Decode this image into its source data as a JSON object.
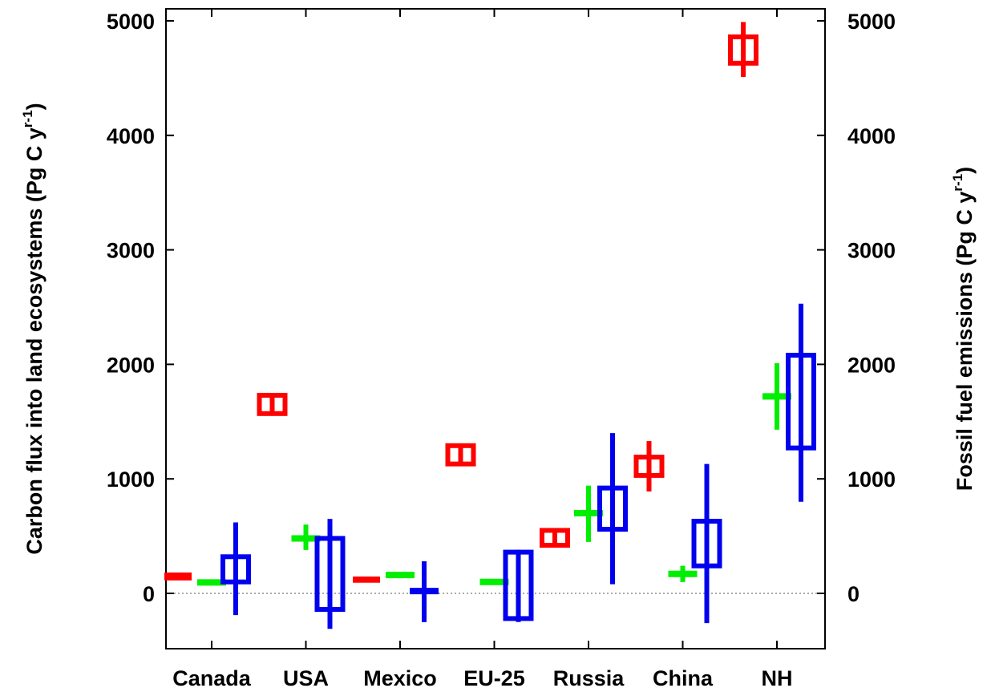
{
  "chart_data": {
    "type": "box",
    "categories": [
      "Canada",
      "USA",
      "Mexico",
      "EU-25",
      "Russia",
      "China",
      "NH"
    ],
    "ylabel_left": "Carbon flux into land ecosystems (Pg C y",
    "ylabel_right": "Fossil fuel emissions (Pg C y",
    "ylabel_superscript": "r-1",
    "ylabel_close": ")",
    "ylim": [
      -500,
      5100
    ],
    "yticks": [
      "0",
      "1000",
      "2000",
      "3000",
      "4000",
      "5000"
    ],
    "ytick_values": [
      0,
      1000,
      2000,
      3000,
      4000,
      5000
    ],
    "zero_line": true,
    "series": [
      {
        "color": "#ff0000",
        "boxes": [
          {
            "category": "Canada",
            "low": 120,
            "q1": 120,
            "q3": 175,
            "high": 175
          },
          {
            "category": "USA",
            "low": 1570,
            "q1": 1570,
            "q3": 1730,
            "high": 1730
          },
          {
            "category": "Mexico",
            "low": 100,
            "q1": 100,
            "q3": 140,
            "high": 140
          },
          {
            "category": "EU-25",
            "low": 1130,
            "q1": 1130,
            "q3": 1290,
            "high": 1290
          },
          {
            "category": "Russia",
            "low": 420,
            "q1": 420,
            "q3": 550,
            "high": 550
          },
          {
            "category": "China",
            "low": 890,
            "q1": 1030,
            "q3": 1190,
            "high": 1330
          },
          {
            "category": "NH",
            "low": 4510,
            "q1": 4630,
            "q3": 4860,
            "high": 4990
          }
        ]
      },
      {
        "color": "#00ee00",
        "boxes": [
          {
            "category": "Canada",
            "low": 95,
            "q1": 95,
            "q3": 95,
            "high": 95,
            "mid": 95
          },
          {
            "category": "USA",
            "low": 380,
            "q1": 480,
            "q3": 480,
            "high": 600,
            "mid": 480
          },
          {
            "category": "Mexico",
            "low": 135,
            "q1": 160,
            "q3": 160,
            "high": 185,
            "mid": 160
          },
          {
            "category": "EU-25",
            "low": 100,
            "q1": 100,
            "q3": 100,
            "high": 100,
            "mid": 100
          },
          {
            "category": "Russia",
            "low": 450,
            "q1": 700,
            "q3": 700,
            "high": 940,
            "mid": 700
          },
          {
            "category": "China",
            "low": 100,
            "q1": 170,
            "q3": 170,
            "high": 240,
            "mid": 170
          },
          {
            "category": "NH",
            "low": 1430,
            "q1": 1720,
            "q3": 1720,
            "high": 2010,
            "mid": 1720
          }
        ]
      },
      {
        "color": "#0000ee",
        "boxes": [
          {
            "category": "Canada",
            "low": -190,
            "q1": 100,
            "q3": 320,
            "high": 620
          },
          {
            "category": "USA",
            "low": -310,
            "q1": -140,
            "q3": 480,
            "high": 650
          },
          {
            "category": "Mexico",
            "low": -250,
            "q1": 20,
            "q3": 20,
            "high": 280,
            "mid": 20
          },
          {
            "category": "EU-25",
            "low": -250,
            "q1": -220,
            "q3": 360,
            "high": 380
          },
          {
            "category": "Russia",
            "low": 80,
            "q1": 560,
            "q3": 920,
            "high": 1400
          },
          {
            "category": "China",
            "low": -260,
            "q1": 240,
            "q3": 630,
            "high": 1130
          },
          {
            "category": "NH",
            "low": 800,
            "q1": 1270,
            "q3": 2080,
            "high": 2530
          }
        ]
      }
    ]
  }
}
